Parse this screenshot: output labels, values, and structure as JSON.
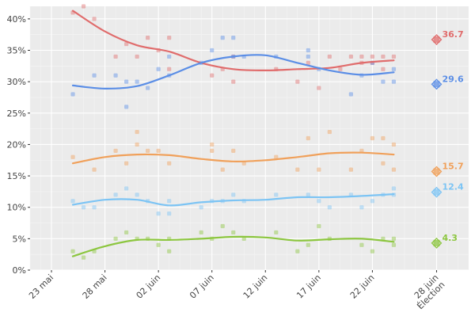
{
  "chart_data": {
    "type": "scatter",
    "title": "",
    "xlabel": "",
    "ylabel": "",
    "x_ticks": [
      {
        "date": "2017-05-23",
        "label": "23 mai"
      },
      {
        "date": "2017-05-28",
        "label": "28 mai"
      },
      {
        "date": "2017-06-02",
        "label": "02 juin"
      },
      {
        "date": "2017-06-07",
        "label": "07 juin"
      },
      {
        "date": "2017-06-12",
        "label": "12 juin"
      },
      {
        "date": "2017-06-17",
        "label": "17 juin"
      },
      {
        "date": "2017-06-22",
        "label": "22 juin"
      },
      {
        "date": "2017-06-28",
        "label": "28 juin",
        "label2": "Élection"
      }
    ],
    "y_ticks": [
      {
        "value": 0,
        "label": "0%"
      },
      {
        "value": 5,
        "label": "5%"
      },
      {
        "value": 10,
        "label": "10%"
      },
      {
        "value": 15,
        "label": "15%"
      },
      {
        "value": 20,
        "label": "20%"
      },
      {
        "value": 25,
        "label": "25%"
      },
      {
        "value": 30,
        "label": "30%"
      },
      {
        "value": 35,
        "label": "35%"
      },
      {
        "value": 40,
        "label": "40%"
      }
    ],
    "xlim": [
      "2017-05-21",
      "2017-07-01"
    ],
    "ylim": [
      0,
      42
    ],
    "grid": true,
    "series": [
      {
        "color": "#e06c6c",
        "trend": [
          [
            "2017-05-25",
            41.3
          ],
          [
            "2017-05-28",
            38.0
          ],
          [
            "2017-05-31",
            35.8
          ],
          [
            "2017-06-03",
            34.8
          ],
          [
            "2017-06-06",
            33.0
          ],
          [
            "2017-06-09",
            32.0
          ],
          [
            "2017-06-12",
            31.8
          ],
          [
            "2017-06-15",
            32.0
          ],
          [
            "2017-06-18",
            32.2
          ],
          [
            "2017-06-21",
            33.0
          ],
          [
            "2017-06-24",
            33.4
          ]
        ],
        "points": [
          [
            "2017-05-25",
            41
          ],
          [
            "2017-05-26",
            42
          ],
          [
            "2017-05-27",
            40
          ],
          [
            "2017-05-29",
            34
          ],
          [
            "2017-05-30",
            36
          ],
          [
            "2017-05-31",
            34
          ],
          [
            "2017-06-01",
            37
          ],
          [
            "2017-06-02",
            35
          ],
          [
            "2017-06-03",
            37
          ],
          [
            "2017-06-03",
            32
          ],
          [
            "2017-06-07",
            31
          ],
          [
            "2017-06-08",
            32
          ],
          [
            "2017-06-09",
            30
          ],
          [
            "2017-06-09",
            34
          ],
          [
            "2017-06-13",
            32
          ],
          [
            "2017-06-15",
            30
          ],
          [
            "2017-06-16",
            33
          ],
          [
            "2017-06-17",
            29
          ],
          [
            "2017-06-18",
            34
          ],
          [
            "2017-06-19",
            32
          ],
          [
            "2017-06-20",
            34
          ],
          [
            "2017-06-21",
            33
          ],
          [
            "2017-06-21",
            34
          ],
          [
            "2017-06-22",
            34
          ],
          [
            "2017-06-22",
            33
          ],
          [
            "2017-06-23",
            34
          ],
          [
            "2017-06-23",
            32
          ],
          [
            "2017-06-24",
            34
          ]
        ],
        "election": {
          "date": "2017-06-28",
          "value": 36.7,
          "label": "36.7"
        }
      },
      {
        "color": "#5b8ee6",
        "trend": [
          [
            "2017-05-25",
            29.4
          ],
          [
            "2017-05-28",
            28.9
          ],
          [
            "2017-05-31",
            29.3
          ],
          [
            "2017-06-03",
            31.0
          ],
          [
            "2017-06-06",
            33.0
          ],
          [
            "2017-06-09",
            34.0
          ],
          [
            "2017-06-12",
            34.2
          ],
          [
            "2017-06-15",
            33.0
          ],
          [
            "2017-06-18",
            31.8
          ],
          [
            "2017-06-21",
            31.1
          ],
          [
            "2017-06-24",
            31.5
          ]
        ],
        "points": [
          [
            "2017-05-25",
            28
          ],
          [
            "2017-05-27",
            31
          ],
          [
            "2017-05-29",
            31
          ],
          [
            "2017-05-30",
            26
          ],
          [
            "2017-05-30",
            30
          ],
          [
            "2017-05-31",
            30
          ],
          [
            "2017-06-01",
            29
          ],
          [
            "2017-06-02",
            32
          ],
          [
            "2017-06-03",
            31
          ],
          [
            "2017-06-03",
            34
          ],
          [
            "2017-06-06",
            33
          ],
          [
            "2017-06-07",
            35
          ],
          [
            "2017-06-08",
            37
          ],
          [
            "2017-06-09",
            37
          ],
          [
            "2017-06-09",
            34
          ],
          [
            "2017-06-10",
            34
          ],
          [
            "2017-06-13",
            34
          ],
          [
            "2017-06-16",
            35
          ],
          [
            "2017-06-16",
            34
          ],
          [
            "2017-06-17",
            32
          ],
          [
            "2017-06-20",
            28
          ],
          [
            "2017-06-21",
            31
          ],
          [
            "2017-06-22",
            33
          ],
          [
            "2017-06-23",
            30
          ],
          [
            "2017-06-24",
            30
          ],
          [
            "2017-06-24",
            32
          ]
        ],
        "election": {
          "date": "2017-06-28",
          "value": 29.6,
          "label": "29.6"
        }
      },
      {
        "color": "#f0a05a",
        "trend": [
          [
            "2017-05-25",
            17.0
          ],
          [
            "2017-05-28",
            18.0
          ],
          [
            "2017-05-31",
            18.4
          ],
          [
            "2017-06-03",
            18.3
          ],
          [
            "2017-06-06",
            17.7
          ],
          [
            "2017-06-09",
            17.3
          ],
          [
            "2017-06-12",
            17.5
          ],
          [
            "2017-06-15",
            18.0
          ],
          [
            "2017-06-18",
            18.6
          ],
          [
            "2017-06-21",
            18.7
          ],
          [
            "2017-06-24",
            18.4
          ]
        ],
        "points": [
          [
            "2017-05-25",
            18
          ],
          [
            "2017-05-27",
            16
          ],
          [
            "2017-05-29",
            19
          ],
          [
            "2017-05-30",
            17
          ],
          [
            "2017-05-31",
            22
          ],
          [
            "2017-05-31",
            20
          ],
          [
            "2017-06-01",
            19
          ],
          [
            "2017-06-02",
            19
          ],
          [
            "2017-06-03",
            17
          ],
          [
            "2017-06-07",
            20
          ],
          [
            "2017-06-07",
            19
          ],
          [
            "2017-06-08",
            16
          ],
          [
            "2017-06-09",
            19
          ],
          [
            "2017-06-10",
            17
          ],
          [
            "2017-06-13",
            18
          ],
          [
            "2017-06-15",
            16
          ],
          [
            "2017-06-16",
            21
          ],
          [
            "2017-06-17",
            16
          ],
          [
            "2017-06-18",
            22
          ],
          [
            "2017-06-20",
            16
          ],
          [
            "2017-06-21",
            19
          ],
          [
            "2017-06-22",
            21
          ],
          [
            "2017-06-23",
            21
          ],
          [
            "2017-06-23",
            17
          ],
          [
            "2017-06-24",
            20
          ],
          [
            "2017-06-24",
            16
          ]
        ],
        "election": {
          "date": "2017-06-28",
          "value": 15.7,
          "label": "15.7"
        }
      },
      {
        "color": "#7cc4f4",
        "trend": [
          [
            "2017-05-25",
            10.4
          ],
          [
            "2017-05-28",
            11.2
          ],
          [
            "2017-05-31",
            11.2
          ],
          [
            "2017-06-03",
            10.3
          ],
          [
            "2017-06-06",
            10.8
          ],
          [
            "2017-06-09",
            11.1
          ],
          [
            "2017-06-12",
            11.2
          ],
          [
            "2017-06-15",
            11.6
          ],
          [
            "2017-06-18",
            11.6
          ],
          [
            "2017-06-21",
            11.8
          ],
          [
            "2017-06-24",
            12.1
          ]
        ],
        "points": [
          [
            "2017-05-25",
            11
          ],
          [
            "2017-05-26",
            10
          ],
          [
            "2017-05-27",
            10
          ],
          [
            "2017-05-29",
            12
          ],
          [
            "2017-05-30",
            13
          ],
          [
            "2017-05-31",
            12
          ],
          [
            "2017-06-01",
            11
          ],
          [
            "2017-06-02",
            9
          ],
          [
            "2017-06-03",
            9
          ],
          [
            "2017-06-03",
            11
          ],
          [
            "2017-06-06",
            10
          ],
          [
            "2017-06-07",
            11
          ],
          [
            "2017-06-08",
            11
          ],
          [
            "2017-06-09",
            12
          ],
          [
            "2017-06-10",
            11
          ],
          [
            "2017-06-13",
            12
          ],
          [
            "2017-06-16",
            12
          ],
          [
            "2017-06-17",
            11
          ],
          [
            "2017-06-18",
            10
          ],
          [
            "2017-06-20",
            12
          ],
          [
            "2017-06-21",
            10
          ],
          [
            "2017-06-22",
            11
          ],
          [
            "2017-06-23",
            12
          ],
          [
            "2017-06-24",
            13
          ],
          [
            "2017-06-24",
            12
          ]
        ],
        "election": {
          "date": "2017-06-28",
          "value": 12.4,
          "label": "12.4"
        }
      },
      {
        "color": "#8cc63f",
        "trend": [
          [
            "2017-05-25",
            2.2
          ],
          [
            "2017-05-28",
            3.8
          ],
          [
            "2017-05-31",
            4.8
          ],
          [
            "2017-06-03",
            4.8
          ],
          [
            "2017-06-06",
            5.0
          ],
          [
            "2017-06-09",
            5.3
          ],
          [
            "2017-06-12",
            5.2
          ],
          [
            "2017-06-15",
            4.7
          ],
          [
            "2017-06-18",
            4.9
          ],
          [
            "2017-06-21",
            5.0
          ],
          [
            "2017-06-24",
            4.5
          ]
        ],
        "points": [
          [
            "2017-05-25",
            3
          ],
          [
            "2017-05-26",
            2
          ],
          [
            "2017-05-27",
            3
          ],
          [
            "2017-05-29",
            5
          ],
          [
            "2017-05-30",
            6
          ],
          [
            "2017-05-31",
            5
          ],
          [
            "2017-06-01",
            5
          ],
          [
            "2017-06-02",
            4
          ],
          [
            "2017-06-03",
            3
          ],
          [
            "2017-06-03",
            5
          ],
          [
            "2017-06-06",
            6
          ],
          [
            "2017-06-07",
            5
          ],
          [
            "2017-06-08",
            7
          ],
          [
            "2017-06-09",
            6
          ],
          [
            "2017-06-10",
            5
          ],
          [
            "2017-06-13",
            6
          ],
          [
            "2017-06-15",
            3
          ],
          [
            "2017-06-16",
            4
          ],
          [
            "2017-06-17",
            7
          ],
          [
            "2017-06-18",
            5
          ],
          [
            "2017-06-21",
            4
          ],
          [
            "2017-06-22",
            3
          ],
          [
            "2017-06-23",
            5
          ],
          [
            "2017-06-24",
            5
          ],
          [
            "2017-06-24",
            4
          ]
        ],
        "election": {
          "date": "2017-06-28",
          "value": 4.3,
          "label": "4.3"
        }
      }
    ]
  }
}
